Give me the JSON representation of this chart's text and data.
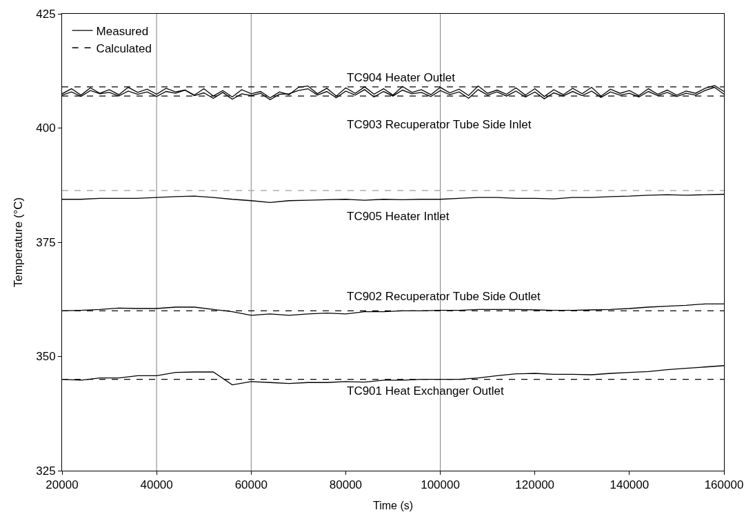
{
  "chart_data": {
    "type": "line",
    "xlabel": "Time (s)",
    "ylabel": "Temperature (°C)",
    "xlim": [
      20000,
      160000
    ],
    "xticks": [
      20000,
      40000,
      60000,
      80000,
      100000,
      120000,
      140000,
      160000
    ],
    "ylim": [
      325,
      425
    ],
    "yticks": [
      325,
      350,
      375,
      400,
      425
    ],
    "grid": false,
    "legend": "top left",
    "marker": "none",
    "series": [
      {
        "name": "Measured",
        "color": "#000000",
        "line_style": "solid",
        "x": [
          20000,
          22000,
          24000,
          26000,
          28000,
          30000,
          32000,
          34000,
          36000,
          38000,
          40000,
          42000,
          44000,
          46000,
          48000,
          50000,
          52000,
          54000,
          56000,
          58000,
          60000,
          62000,
          64000,
          66000,
          68000,
          70000,
          72000,
          74000,
          76000,
          78000,
          80000,
          82000,
          84000,
          86000,
          88000,
          90000,
          92000,
          94000,
          96000,
          98000,
          100000,
          102000,
          104000,
          106000,
          108000,
          110000,
          112000,
          114000,
          116000,
          118000,
          120000,
          122000,
          124000,
          126000,
          128000,
          130000,
          132000,
          134000,
          136000,
          138000,
          140000,
          142000,
          144000,
          146000,
          148000,
          150000,
          152000,
          154000,
          156000,
          158000,
          160000
        ],
        "values": [
          407.5,
          408.6,
          407.2,
          408.8,
          407.6,
          408.4,
          407.3,
          408.9,
          407.8,
          408.5,
          407.4,
          408.7,
          407.9,
          408.3,
          407.2,
          408.6,
          407.0,
          408.2,
          406.8,
          408.4,
          407.5,
          408.0,
          406.6,
          407.9,
          407.3,
          408.9,
          409.2,
          407.5,
          408.7,
          407.0,
          408.8,
          407.6,
          409.0,
          407.4,
          408.6,
          407.2,
          409.1,
          407.8,
          408.4,
          407.3,
          408.9,
          407.7,
          408.5,
          407.1,
          409.2,
          407.6,
          408.3,
          407.4,
          408.8,
          407.2,
          408.6,
          406.9,
          408.4,
          407.3,
          408.7,
          407.5,
          408.9,
          407.0,
          408.5,
          407.6,
          408.2,
          407.1,
          408.6,
          407.4,
          408.3,
          407.2,
          408.1,
          407.6,
          408.7,
          409.3,
          408.0
        ]
      },
      {
        "color": "#000000",
        "line_style": "solid",
        "x": [
          20000,
          22000,
          24000,
          26000,
          28000,
          30000,
          32000,
          34000,
          36000,
          38000,
          40000,
          42000,
          44000,
          46000,
          48000,
          50000,
          52000,
          54000,
          56000,
          58000,
          60000,
          62000,
          64000,
          66000,
          68000,
          70000,
          72000,
          74000,
          76000,
          78000,
          80000,
          82000,
          84000,
          86000,
          88000,
          90000,
          92000,
          94000,
          96000,
          98000,
          100000,
          102000,
          104000,
          106000,
          108000,
          110000,
          112000,
          114000,
          116000,
          118000,
          120000,
          122000,
          124000,
          126000,
          128000,
          130000,
          132000,
          134000,
          136000,
          138000,
          140000,
          142000,
          144000,
          146000,
          148000,
          150000,
          152000,
          154000,
          156000,
          158000,
          160000
        ],
        "values": [
          407.2,
          407.9,
          406.9,
          408.2,
          407.5,
          407.8,
          407.0,
          408.1,
          407.4,
          407.9,
          406.9,
          408.0,
          407.6,
          408.3,
          407.1,
          407.7,
          406.5,
          407.8,
          406.3,
          407.5,
          407.1,
          407.6,
          406.2,
          407.4,
          407.5,
          408.2,
          408.6,
          407.2,
          408.0,
          406.6,
          408.1,
          407.2,
          408.4,
          406.8,
          408.0,
          407.0,
          408.3,
          407.5,
          407.8,
          406.9,
          408.2,
          407.3,
          407.9,
          406.5,
          408.4,
          407.2,
          407.9,
          407.0,
          408.1,
          406.8,
          407.9,
          406.4,
          407.7,
          407.0,
          408.0,
          407.1,
          408.1,
          406.7,
          407.9,
          407.2,
          407.6,
          406.8,
          408.0,
          407.1,
          407.8,
          406.9,
          407.6,
          407.2,
          408.2,
          408.9,
          407.4
        ]
      },
      {
        "color": "#000000",
        "line_style": "solid",
        "x": [
          20000,
          24000,
          28000,
          32000,
          36000,
          40000,
          44000,
          48000,
          52000,
          56000,
          60000,
          64000,
          68000,
          72000,
          76000,
          80000,
          84000,
          88000,
          92000,
          96000,
          100000,
          104000,
          108000,
          112000,
          116000,
          120000,
          124000,
          128000,
          132000,
          136000,
          140000,
          144000,
          148000,
          152000,
          156000,
          160000
        ],
        "values": [
          384.4,
          384.4,
          384.6,
          384.6,
          384.6,
          384.8,
          385.0,
          385.1,
          384.8,
          384.4,
          384.1,
          383.7,
          384.1,
          384.2,
          384.3,
          384.4,
          384.2,
          384.4,
          384.3,
          384.4,
          384.4,
          384.6,
          384.8,
          384.8,
          384.6,
          384.6,
          384.5,
          384.8,
          384.8,
          385.0,
          385.1,
          385.3,
          385.4,
          385.3,
          385.4,
          385.5
        ]
      },
      {
        "color": "#000000",
        "line_style": "solid",
        "x": [
          20000,
          24000,
          28000,
          32000,
          36000,
          40000,
          44000,
          48000,
          52000,
          56000,
          60000,
          64000,
          68000,
          72000,
          76000,
          80000,
          84000,
          88000,
          92000,
          96000,
          100000,
          104000,
          108000,
          112000,
          116000,
          120000,
          124000,
          128000,
          132000,
          136000,
          140000,
          144000,
          148000,
          152000,
          156000,
          160000
        ],
        "values": [
          360.0,
          360.1,
          360.3,
          360.6,
          360.5,
          360.5,
          360.8,
          360.8,
          360.3,
          359.8,
          359.0,
          359.3,
          359.0,
          359.3,
          359.5,
          359.3,
          359.8,
          359.8,
          360.0,
          360.0,
          360.1,
          360.1,
          360.3,
          360.3,
          360.3,
          360.2,
          360.1,
          360.1,
          360.2,
          360.3,
          360.5,
          360.8,
          361.0,
          361.2,
          361.5,
          361.5
        ]
      },
      {
        "color": "#000000",
        "line_style": "solid",
        "x": [
          20000,
          24000,
          28000,
          32000,
          36000,
          40000,
          44000,
          48000,
          52000,
          56000,
          60000,
          64000,
          68000,
          72000,
          76000,
          80000,
          84000,
          88000,
          92000,
          96000,
          100000,
          104000,
          108000,
          112000,
          116000,
          120000,
          124000,
          128000,
          132000,
          136000,
          140000,
          144000,
          148000,
          152000,
          156000,
          160000
        ],
        "values": [
          345.0,
          344.8,
          345.3,
          345.3,
          345.8,
          345.8,
          346.5,
          346.6,
          346.6,
          343.8,
          344.5,
          344.3,
          344.1,
          344.3,
          344.3,
          344.5,
          344.4,
          344.8,
          344.8,
          345.0,
          345.0,
          345.0,
          345.3,
          345.8,
          346.2,
          346.3,
          346.1,
          346.1,
          346.0,
          346.3,
          346.5,
          346.7,
          347.1,
          347.4,
          347.7,
          348.0
        ]
      },
      {
        "name": "Calculated",
        "color": "#000000",
        "line_style": "dashed",
        "x": [
          20000,
          160000
        ],
        "values": [
          409,
          409
        ]
      },
      {
        "color": "#000000",
        "line_style": "dashed",
        "x": [
          20000,
          160000
        ],
        "values": [
          407,
          407
        ]
      },
      {
        "color": "#a0a0a0",
        "line_style": "dashed",
        "x": [
          20000,
          160000
        ],
        "values": [
          386.3,
          386.3
        ]
      },
      {
        "color": "#000000",
        "line_style": "dashed",
        "x": [
          20000,
          160000
        ],
        "values": [
          360,
          360
        ]
      },
      {
        "color": "#000000",
        "line_style": "dashed",
        "x": [
          20000,
          160000
        ],
        "values": [
          345,
          345
        ]
      }
    ],
    "ref_lines": [
      {
        "axis": "x",
        "value": 40000,
        "color": "#808080"
      },
      {
        "axis": "x",
        "value": 60000,
        "color": "#808080"
      },
      {
        "axis": "x",
        "value": 100000,
        "color": "#808080"
      }
    ],
    "annotations": [
      "TC904 Heater Outlet",
      "TC903 Recuperator Tube Side Inlet",
      "TC905 Heater Intlet",
      "TC902 Recuperator Tube Side Outlet",
      "TC901 Heat Exchanger Outlet"
    ]
  }
}
